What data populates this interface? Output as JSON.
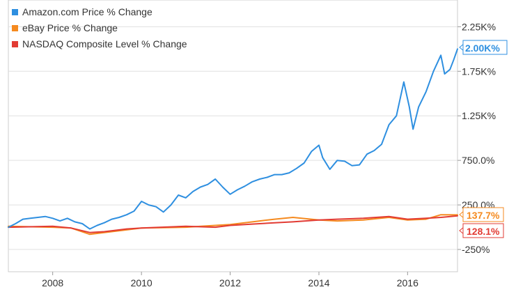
{
  "chart_data": {
    "type": "line",
    "title": "",
    "xlabel": "",
    "ylabel": "",
    "x_range": [
      "2007-01-01",
      "2017-02-15"
    ],
    "ylim": [
      -500,
      2550
    ],
    "x_ticks": [
      {
        "date": "2008-01-01",
        "label": "2008"
      },
      {
        "date": "2010-01-01",
        "label": "2010"
      },
      {
        "date": "2012-01-01",
        "label": "2012"
      },
      {
        "date": "2014-01-01",
        "label": "2014"
      },
      {
        "date": "2016-01-01",
        "label": "2016"
      }
    ],
    "y_ticks": [
      {
        "value": 2250,
        "label": "2.25K%"
      },
      {
        "value": 1750,
        "label": "1.75K%"
      },
      {
        "value": 1250,
        "label": "1.25K%"
      },
      {
        "value": 750,
        "label": "750.0%"
      },
      {
        "value": 250,
        "label": "250.0%"
      },
      {
        "value": -250,
        "label": "-250%"
      }
    ],
    "grid": "horizontal",
    "legend_position": "top-left",
    "series": [
      {
        "name": "Amazon.com Price % Change",
        "color": "#2e8fe0",
        "end_label": "2.00K%",
        "points": [
          [
            "2007-01-01",
            0
          ],
          [
            "2007-03-01",
            40
          ],
          [
            "2007-05-01",
            90
          ],
          [
            "2007-07-01",
            100
          ],
          [
            "2007-09-01",
            110
          ],
          [
            "2007-11-01",
            120
          ],
          [
            "2008-01-01",
            100
          ],
          [
            "2008-03-01",
            70
          ],
          [
            "2008-05-01",
            100
          ],
          [
            "2008-07-01",
            60
          ],
          [
            "2008-09-01",
            40
          ],
          [
            "2008-11-01",
            -20
          ],
          [
            "2009-01-01",
            20
          ],
          [
            "2009-03-01",
            50
          ],
          [
            "2009-05-01",
            90
          ],
          [
            "2009-07-01",
            110
          ],
          [
            "2009-09-01",
            140
          ],
          [
            "2009-11-01",
            180
          ],
          [
            "2010-01-01",
            290
          ],
          [
            "2010-03-01",
            250
          ],
          [
            "2010-05-01",
            230
          ],
          [
            "2010-07-01",
            170
          ],
          [
            "2010-09-01",
            250
          ],
          [
            "2010-11-01",
            360
          ],
          [
            "2011-01-01",
            330
          ],
          [
            "2011-03-01",
            400
          ],
          [
            "2011-05-01",
            450
          ],
          [
            "2011-07-01",
            480
          ],
          [
            "2011-09-01",
            540
          ],
          [
            "2011-11-01",
            450
          ],
          [
            "2012-01-01",
            370
          ],
          [
            "2012-03-01",
            420
          ],
          [
            "2012-05-01",
            460
          ],
          [
            "2012-07-01",
            510
          ],
          [
            "2012-09-01",
            540
          ],
          [
            "2012-11-01",
            560
          ],
          [
            "2013-01-01",
            590
          ],
          [
            "2013-03-01",
            590
          ],
          [
            "2013-05-01",
            610
          ],
          [
            "2013-07-01",
            660
          ],
          [
            "2013-09-01",
            720
          ],
          [
            "2013-11-01",
            850
          ],
          [
            "2014-01-01",
            920
          ],
          [
            "2014-02-01",
            780
          ],
          [
            "2014-04-01",
            650
          ],
          [
            "2014-06-01",
            750
          ],
          [
            "2014-08-01",
            740
          ],
          [
            "2014-10-01",
            690
          ],
          [
            "2014-12-01",
            700
          ],
          [
            "2015-02-01",
            820
          ],
          [
            "2015-04-01",
            860
          ],
          [
            "2015-06-01",
            930
          ],
          [
            "2015-08-01",
            1150
          ],
          [
            "2015-10-01",
            1250
          ],
          [
            "2015-12-01",
            1630
          ],
          [
            "2016-01-15",
            1350
          ],
          [
            "2016-02-15",
            1100
          ],
          [
            "2016-04-01",
            1350
          ],
          [
            "2016-06-01",
            1520
          ],
          [
            "2016-08-01",
            1750
          ],
          [
            "2016-10-01",
            1930
          ],
          [
            "2016-11-01",
            1720
          ],
          [
            "2016-12-15",
            1770
          ],
          [
            "2017-01-15",
            1880
          ],
          [
            "2017-02-15",
            2000
          ]
        ]
      },
      {
        "name": "eBay Price % Change",
        "color": "#f58a1f",
        "end_label": "137.7%",
        "points": [
          [
            "2007-01-01",
            10
          ],
          [
            "2008-01-01",
            0
          ],
          [
            "2008-06-01",
            -10
          ],
          [
            "2008-11-01",
            -80
          ],
          [
            "2009-03-01",
            -60
          ],
          [
            "2009-09-01",
            -30
          ],
          [
            "2010-01-01",
            -10
          ],
          [
            "2011-01-01",
            0
          ],
          [
            "2011-09-01",
            20
          ],
          [
            "2012-01-01",
            30
          ],
          [
            "2012-09-01",
            70
          ],
          [
            "2013-01-01",
            90
          ],
          [
            "2013-06-01",
            110
          ],
          [
            "2014-01-01",
            80
          ],
          [
            "2014-06-01",
            70
          ],
          [
            "2015-01-01",
            80
          ],
          [
            "2015-08-01",
            110
          ],
          [
            "2016-01-01",
            80
          ],
          [
            "2016-06-01",
            90
          ],
          [
            "2016-10-01",
            140
          ],
          [
            "2017-02-15",
            138
          ]
        ]
      },
      {
        "name": "NASDAQ Composite Level % Change",
        "color": "#e23b33",
        "end_label": "128.1%",
        "points": [
          [
            "2007-01-01",
            0
          ],
          [
            "2008-01-01",
            10
          ],
          [
            "2008-06-01",
            -10
          ],
          [
            "2008-11-01",
            -60
          ],
          [
            "2009-03-01",
            -50
          ],
          [
            "2009-09-01",
            -20
          ],
          [
            "2010-01-01",
            -10
          ],
          [
            "2011-01-01",
            10
          ],
          [
            "2011-09-01",
            0
          ],
          [
            "2012-01-01",
            20
          ],
          [
            "2012-09-01",
            40
          ],
          [
            "2013-01-01",
            50
          ],
          [
            "2013-06-01",
            60
          ],
          [
            "2014-01-01",
            80
          ],
          [
            "2014-06-01",
            90
          ],
          [
            "2015-01-01",
            100
          ],
          [
            "2015-08-01",
            120
          ],
          [
            "2016-01-01",
            90
          ],
          [
            "2016-06-01",
            100
          ],
          [
            "2016-10-01",
            110
          ],
          [
            "2017-02-15",
            128
          ]
        ]
      }
    ]
  }
}
